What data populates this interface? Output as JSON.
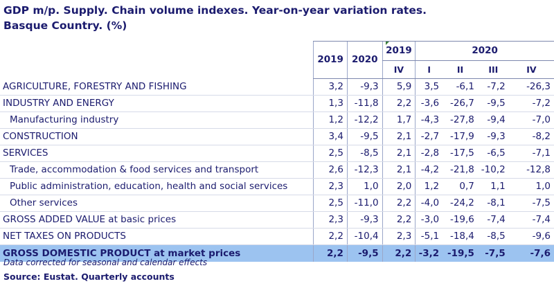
{
  "title_line1": "GDP m/p. Supply. Chain volume indexes. Year-on-year variation rates.",
  "title_line2": "Basque Country. (%)",
  "header": {
    "y2019": "2019",
    "y2020": "2020",
    "q_group_2019": "2019",
    "q_group_2020": "2020",
    "q4_2019": "IV",
    "q1": "I",
    "q2": "II",
    "q3": "III",
    "q4": "IV"
  },
  "rows": [
    {
      "label": "AGRICULTURE, FORESTRY AND FISHING",
      "values": [
        "3,2",
        "-9,3",
        "5,9",
        "3,5",
        "-6,1",
        "-7,2",
        "-26,3"
      ]
    },
    {
      "label": "INDUSTRY AND ENERGY",
      "values": [
        "1,3",
        "-11,8",
        "2,2",
        "-3,6",
        "-26,7",
        "-9,5",
        "-7,2"
      ]
    },
    {
      "label": "Manufacturing industry",
      "values": [
        "1,2",
        "-12,2",
        "1,7",
        "-4,3",
        "-27,8",
        "-9,4",
        "-7,0"
      ]
    },
    {
      "label": "CONSTRUCTION",
      "values": [
        "3,4",
        "-9,5",
        "2,1",
        "-2,7",
        "-17,9",
        "-9,3",
        "-8,2"
      ]
    },
    {
      "label": "SERVICES",
      "values": [
        "2,5",
        "-8,5",
        "2,1",
        "-2,8",
        "-17,5",
        "-6,5",
        "-7,1"
      ]
    },
    {
      "label": "Trade, accommodation & food services and transport",
      "values": [
        "2,6",
        "-12,3",
        "2,1",
        "-4,2",
        "-21,8",
        "-10,2",
        "-12,8"
      ]
    },
    {
      "label": "Public administration, education, health and social services",
      "values": [
        "2,3",
        "1,0",
        "2,0",
        "1,2",
        "0,7",
        "1,1",
        "1,0"
      ]
    },
    {
      "label": "Other services",
      "values": [
        "2,5",
        "-11,0",
        "2,2",
        "-4,0",
        "-24,2",
        "-8,1",
        "-7,5"
      ]
    },
    {
      "label": "GROSS ADDED VALUE at basic prices",
      "values": [
        "2,3",
        "-9,3",
        "2,2",
        "-3,0",
        "-19,6",
        "-7,4",
        "-7,4"
      ]
    },
    {
      "label": "NET TAXES ON PRODUCTS",
      "values": [
        "2,2",
        "-10,4",
        "2,3",
        "-5,1",
        "-18,4",
        "-8,5",
        "-9,6"
      ]
    }
  ],
  "gdp": {
    "label": "GROSS DOMESTIC PRODUCT at market prices",
    "values": [
      "2,2",
      "-9,5",
      "2,2",
      "-3,2",
      "-19,5",
      "-7,5",
      "-7,6"
    ]
  },
  "footnote": "Data corrected for seasonal and calendar effects",
  "source": "Source: Eustat. Quarterly accounts",
  "colors": {
    "text": "#1b1b6e",
    "highlight": "#9cc3f0"
  }
}
